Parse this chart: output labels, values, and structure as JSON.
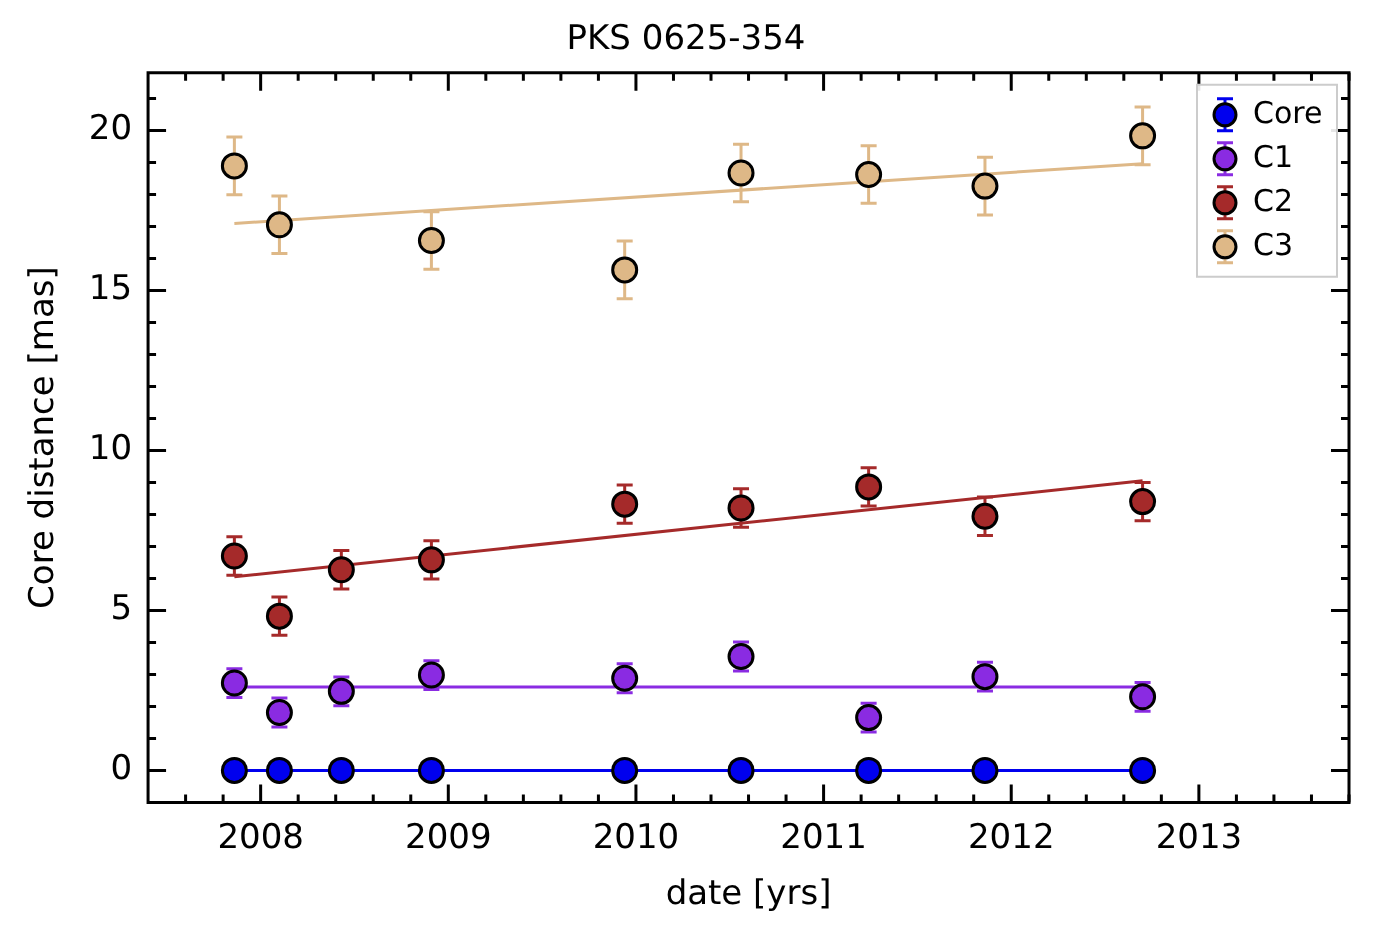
{
  "chart_data": {
    "type": "scatter",
    "title": "PKS 0625-354",
    "xlabel": "date [yrs]",
    "ylabel": "Core distance [mas]",
    "xlim": [
      2007.4,
      2013.8
    ],
    "xticks": [
      2008,
      2009,
      2010,
      2011,
      2012,
      2013
    ],
    "ylim": [
      -1,
      21.8
    ],
    "yticks": [
      0,
      5,
      10,
      15,
      20
    ],
    "grid": false,
    "legend": "top right",
    "marker": "circle",
    "series": [
      {
        "name": "Core",
        "color": "#0000ee",
        "x": [
          2007.86,
          2008.1,
          2008.43,
          2008.91,
          2009.94,
          2010.56,
          2011.24,
          2011.86,
          2012.7
        ],
        "values": [
          0,
          0,
          0,
          0,
          0,
          0,
          0,
          0,
          0
        ]
      },
      {
        "name": "C1",
        "color": "#8a2be2",
        "x": [
          2007.86,
          2008.1,
          2008.43,
          2008.91,
          2009.94,
          2010.56,
          2011.24,
          2011.86,
          2012.7
        ],
        "values": [
          2.73,
          1.81,
          2.47,
          2.98,
          2.88,
          3.56,
          1.65,
          2.93,
          2.3
        ],
        "errors": [
          0.45,
          0.45,
          0.45,
          0.45,
          0.45,
          0.45,
          0.45,
          0.45,
          0.45
        ]
      },
      {
        "name": "C2",
        "color": "#a52a2a",
        "x": [
          2007.86,
          2008.1,
          2008.43,
          2008.91,
          2009.94,
          2010.56,
          2011.24,
          2011.86,
          2012.7
        ],
        "values": [
          6.7,
          4.82,
          6.27,
          6.58,
          8.32,
          8.2,
          8.86,
          7.94,
          8.4
        ],
        "errors": [
          0.6,
          0.6,
          0.6,
          0.6,
          0.6,
          0.6,
          0.6,
          0.6,
          0.6
        ]
      },
      {
        "name": "C3",
        "color": "#deb887",
        "x": [
          2007.86,
          2008.1,
          2008.91,
          2009.94,
          2010.56,
          2011.24,
          2011.86,
          2012.7
        ],
        "values": [
          18.89,
          17.05,
          16.56,
          15.64,
          18.67,
          18.62,
          18.26,
          19.83
        ],
        "errors": [
          0.9,
          0.9,
          0.9,
          0.9,
          0.9,
          0.9,
          0.9,
          0.9
        ]
      },
      {
        "type": "line",
        "marker": "none",
        "color": "#0000ee",
        "x": [
          2007.86,
          2012.7
        ],
        "values": [
          0,
          0
        ]
      },
      {
        "type": "line",
        "marker": "none",
        "color": "#8a2be2",
        "x": [
          2007.86,
          2012.7
        ],
        "values": [
          2.61,
          2.61
        ]
      },
      {
        "type": "line",
        "marker": "none",
        "color": "#a52a2a",
        "x": [
          2007.86,
          2012.7
        ],
        "values": [
          6.05,
          9.05
        ]
      },
      {
        "type": "line",
        "marker": "none",
        "color": "#deb887",
        "x": [
          2007.86,
          2012.7
        ],
        "values": [
          17.09,
          18.96
        ]
      }
    ]
  }
}
